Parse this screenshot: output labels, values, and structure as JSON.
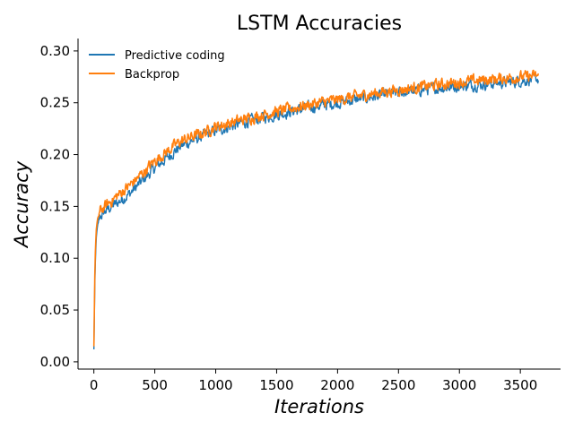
{
  "chart_data": {
    "type": "line",
    "title": "LSTM Accuracies",
    "xlabel": "Iterations",
    "ylabel": "Accuracy",
    "xlim": [
      -130,
      3830
    ],
    "ylim": [
      -0.007,
      0.312
    ],
    "xticks": [
      0,
      500,
      1000,
      1500,
      2000,
      2500,
      3000,
      3500
    ],
    "xtick_labels": [
      "0",
      "500",
      "1000",
      "1500",
      "2000",
      "2500",
      "3000",
      "3500"
    ],
    "yticks": [
      0.0,
      0.05,
      0.1,
      0.15,
      0.2,
      0.25,
      0.3
    ],
    "ytick_labels": [
      "0.00",
      "0.05",
      "0.10",
      "0.15",
      "0.20",
      "0.25",
      "0.30"
    ],
    "grid": false,
    "legend_position": "top-left",
    "series": [
      {
        "name": "Predictive coding",
        "color": "#1f77b4",
        "x": [
          0,
          10,
          20,
          30,
          50,
          75,
          100,
          150,
          200,
          300,
          400,
          500,
          600,
          700,
          800,
          900,
          1000,
          1200,
          1400,
          1600,
          1800,
          2000,
          2200,
          2400,
          2600,
          2800,
          3000,
          3200,
          3400,
          3650
        ],
        "y": [
          0.012,
          0.09,
          0.12,
          0.132,
          0.14,
          0.143,
          0.146,
          0.15,
          0.154,
          0.163,
          0.175,
          0.187,
          0.197,
          0.207,
          0.213,
          0.218,
          0.223,
          0.23,
          0.236,
          0.241,
          0.246,
          0.25,
          0.254,
          0.258,
          0.261,
          0.264,
          0.266,
          0.268,
          0.27,
          0.273
        ]
      },
      {
        "name": "Backprop",
        "color": "#ff7f0e",
        "x": [
          0,
          10,
          20,
          30,
          50,
          75,
          100,
          150,
          200,
          300,
          400,
          500,
          600,
          700,
          800,
          900,
          1000,
          1200,
          1400,
          1600,
          1800,
          2000,
          2200,
          2400,
          2600,
          2800,
          3000,
          3200,
          3400,
          3650
        ],
        "y": [
          0.015,
          0.1,
          0.128,
          0.138,
          0.145,
          0.148,
          0.151,
          0.156,
          0.161,
          0.171,
          0.182,
          0.194,
          0.203,
          0.212,
          0.217,
          0.221,
          0.227,
          0.233,
          0.239,
          0.244,
          0.249,
          0.253,
          0.257,
          0.261,
          0.264,
          0.267,
          0.27,
          0.272,
          0.274,
          0.276
        ]
      }
    ]
  }
}
